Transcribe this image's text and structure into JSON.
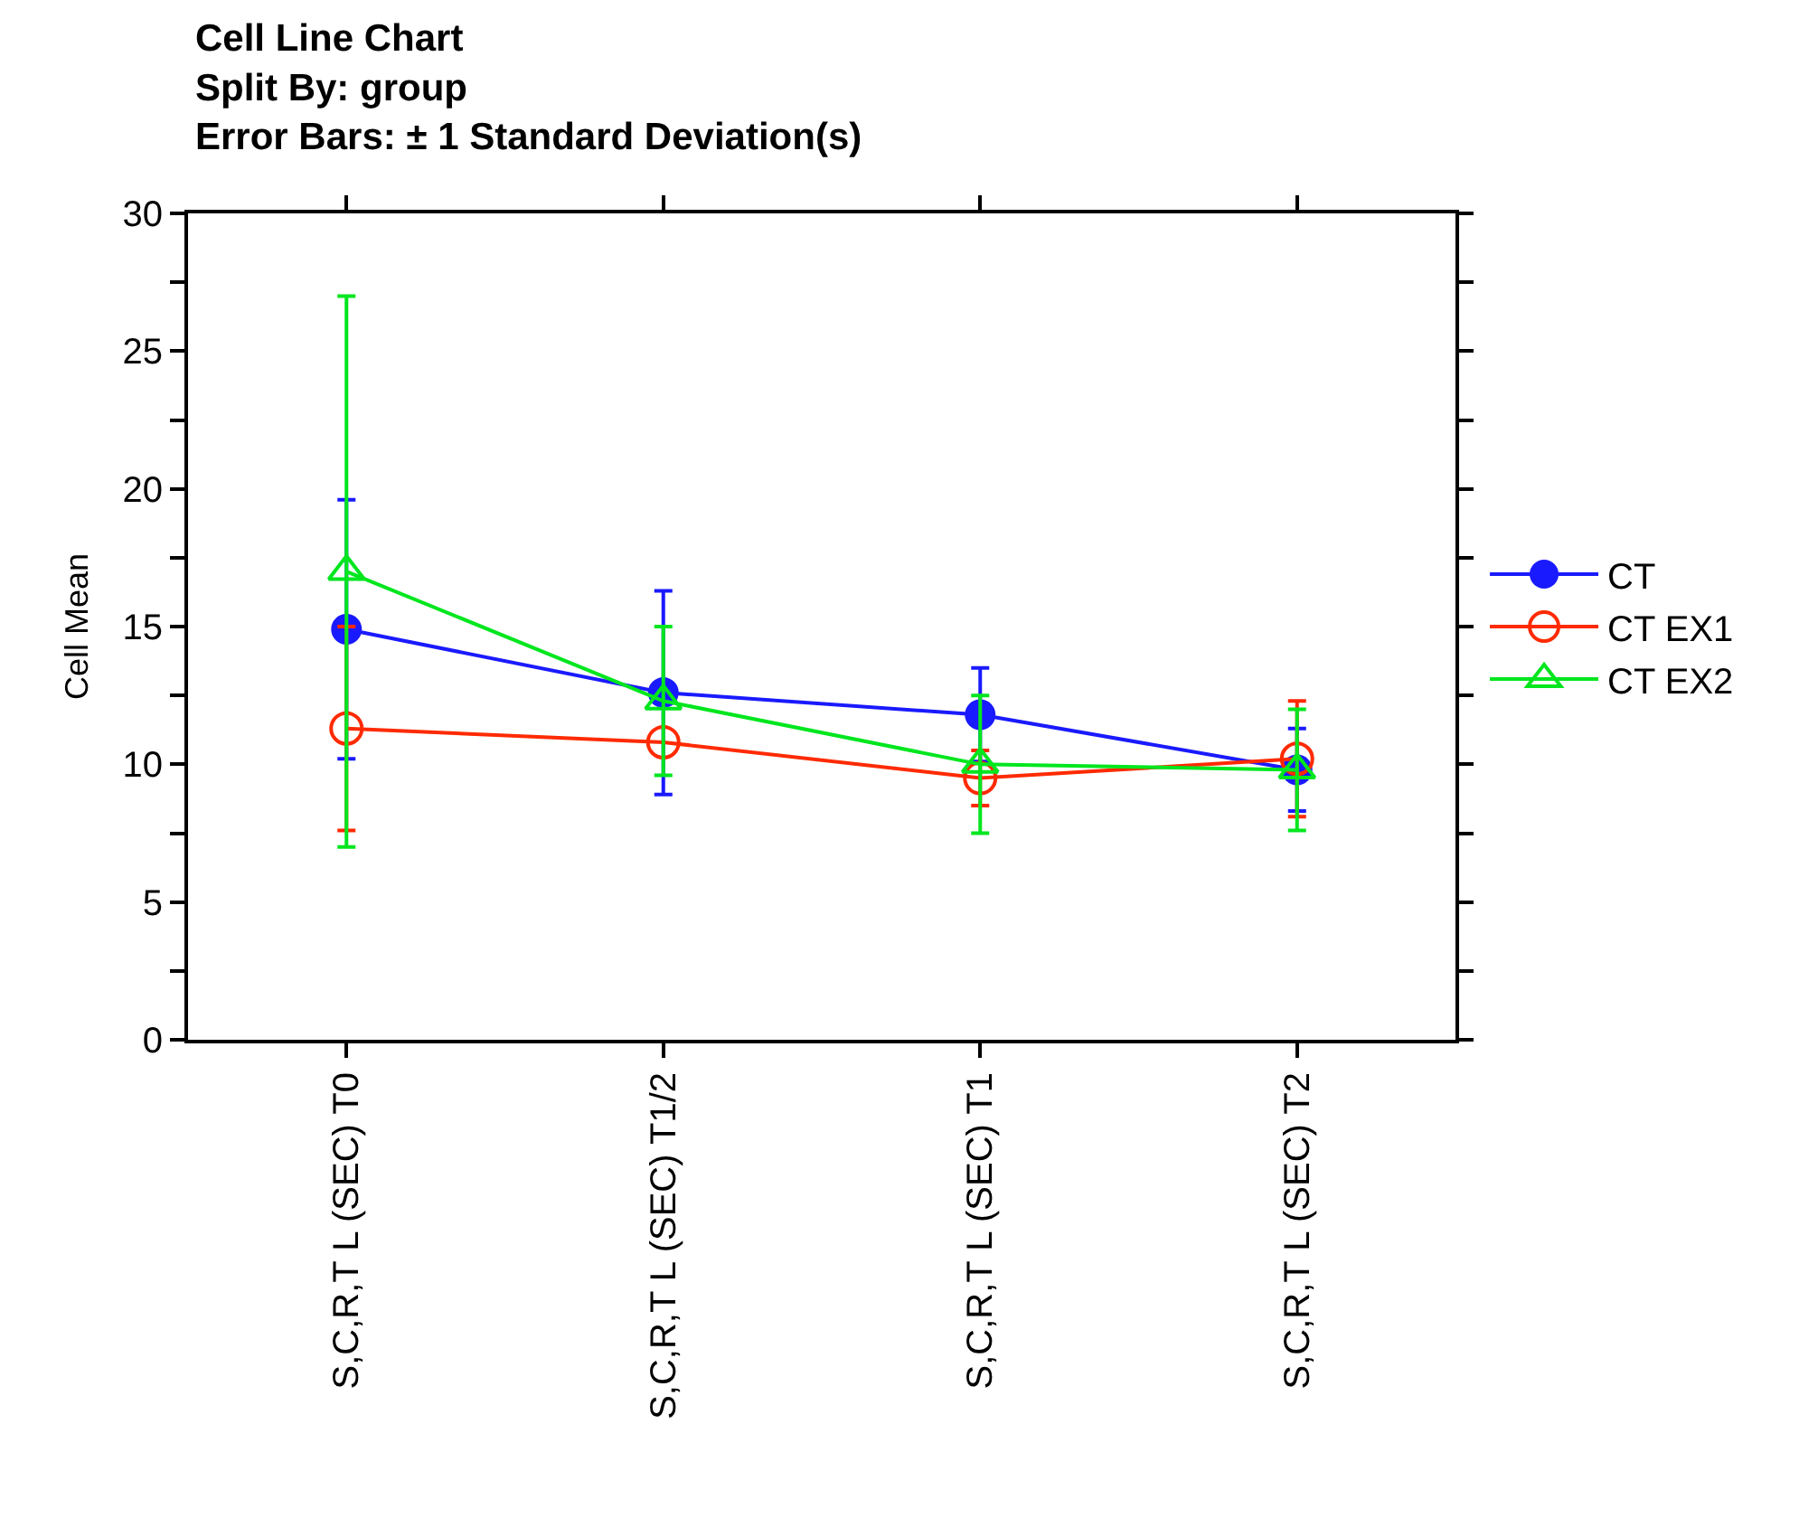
{
  "chart_data": {
    "type": "line",
    "title": "Cell Line Chart\nSplit By: group\nError Bars: ± 1 Standard Deviation(s)",
    "ylabel": "Cell Mean",
    "categories": [
      "S,C,R,T L (SEC) T0",
      "S,C,R,T L (SEC) T1/2",
      "S,C,R,T L (SEC) T1",
      "S,C,R,T L (SEC) T2"
    ],
    "series": [
      {
        "name": "CT",
        "color": "#1a1aff",
        "marker": "circle",
        "values": [
          14.9,
          12.6,
          11.8,
          9.8
        ],
        "errors": [
          4.7,
          3.7,
          1.7,
          1.5
        ]
      },
      {
        "name": "CT EX1",
        "color": "#ff2a00",
        "marker": "circle-open",
        "values": [
          11.3,
          10.8,
          9.5,
          10.2
        ],
        "errors": [
          3.7,
          null,
          1.0,
          2.1
        ]
      },
      {
        "name": "CT EX2",
        "color": "#00e61e",
        "marker": "triangle-open",
        "values": [
          17.0,
          12.3,
          10.0,
          9.8
        ],
        "errors": [
          10,
          2.7,
          2.5,
          2.2
        ]
      }
    ],
    "ylim": [
      0,
      30
    ],
    "yticks": [
      0,
      {
        "value": 2.5,
        "label": null
      },
      5,
      {
        "value": 7.5,
        "label": null
      },
      10,
      {
        "value": 12.5,
        "label": null
      },
      15,
      {
        "value": 17.5,
        "label": null
      },
      20,
      {
        "value": 22.5,
        "label": null
      },
      25,
      {
        "value": 27.5,
        "label": null
      },
      30
    ],
    "grid": false,
    "legend": "right",
    "line_style": "solid"
  }
}
